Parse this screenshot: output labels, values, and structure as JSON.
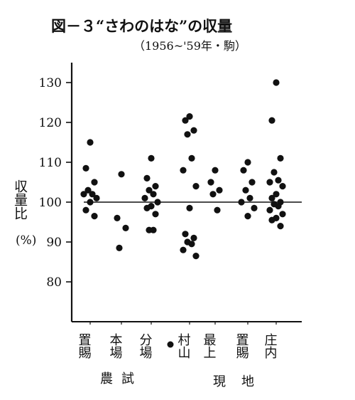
{
  "chart_data": {
    "type": "scatter",
    "title": "図－３“さわのはな”の収量",
    "subtitle": "（1956~'59年・駒）",
    "ylabel": "収量比",
    "yunit": "(%)",
    "ylim": [
      70,
      135
    ],
    "yticks": [
      "80",
      "90",
      "100",
      "110",
      "120",
      "130"
    ],
    "reference_line": 100,
    "categories": [
      {
        "label": "置賜",
        "group": "農試"
      },
      {
        "label": "本場",
        "group": "農試"
      },
      {
        "label": "分場",
        "group": "農試"
      },
      {
        "label": "村山",
        "group": "現地"
      },
      {
        "label": "最上",
        "group": "現地"
      },
      {
        "label": "置賜",
        "group": "現地"
      },
      {
        "label": "庄内",
        "group": "現地"
      }
    ],
    "groups": [
      "農試",
      "現地"
    ],
    "legend_marker": "●",
    "points": [
      {
        "c": 0,
        "v": [
          115,
          108.5,
          105,
          103,
          102,
          102,
          101,
          100,
          98,
          96.5
        ]
      },
      {
        "c": 1,
        "v": [
          107,
          96,
          93.5,
          88.5
        ]
      },
      {
        "c": 2,
        "v": [
          111,
          106,
          104,
          103,
          102,
          101,
          100,
          99,
          98.5,
          97,
          93,
          93
        ]
      },
      {
        "c": 3,
        "v": [
          121.5,
          120.5,
          118,
          117,
          111,
          108,
          104,
          98.5,
          92,
          91,
          90,
          89.5,
          88,
          86.5
        ]
      },
      {
        "c": 4,
        "v": [
          108,
          105,
          103,
          102,
          98
        ]
      },
      {
        "c": 5,
        "v": [
          110,
          108,
          105,
          103,
          101,
          100,
          98.5,
          96.5
        ]
      },
      {
        "c": 6,
        "v": [
          130,
          120.5,
          111,
          107.5,
          105.5,
          105,
          104,
          102,
          101,
          100,
          99.5,
          99,
          98,
          97,
          96,
          95.5,
          94
        ]
      }
    ]
  }
}
